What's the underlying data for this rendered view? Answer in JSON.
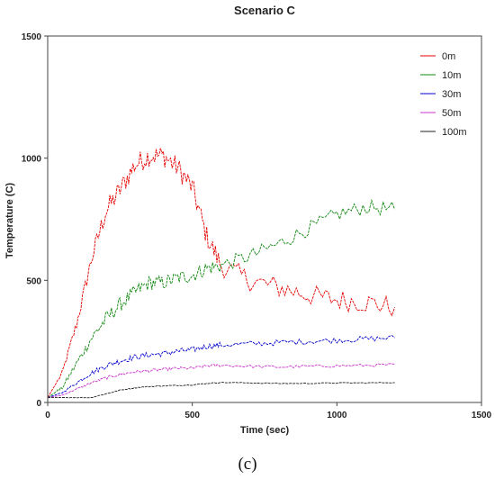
{
  "chart_data": {
    "type": "line",
    "title": "Scenario C",
    "xlabel": "Time (sec)",
    "ylabel": "Temperature (C)",
    "xlim": [
      0,
      1500
    ],
    "ylim": [
      0,
      1500
    ],
    "xticks": [
      0,
      500,
      1000,
      1500
    ],
    "yticks": [
      0,
      500,
      1000,
      1500
    ],
    "grid": false,
    "legend_position": "top-right",
    "series": [
      {
        "name": "0m",
        "color": "#e60000",
        "x": [
          0,
          50,
          100,
          150,
          200,
          250,
          300,
          350,
          400,
          450,
          500,
          550,
          600,
          700,
          800,
          900,
          1000,
          1100,
          1200
        ],
        "y": [
          20,
          120,
          320,
          580,
          780,
          870,
          970,
          1010,
          1010,
          960,
          880,
          680,
          560,
          500,
          470,
          440,
          420,
          410,
          390
        ]
      },
      {
        "name": "10m",
        "color": "#118811",
        "x": [
          0,
          50,
          100,
          150,
          200,
          250,
          300,
          350,
          400,
          450,
          500,
          550,
          600,
          700,
          800,
          900,
          1000,
          1100,
          1200
        ],
        "y": [
          20,
          60,
          160,
          260,
          340,
          400,
          450,
          490,
          490,
          510,
          520,
          550,
          560,
          600,
          650,
          710,
          770,
          800,
          790
        ]
      },
      {
        "name": "30m",
        "color": "#0000cc",
        "x": [
          0,
          50,
          100,
          150,
          200,
          250,
          300,
          350,
          400,
          450,
          500,
          550,
          600,
          700,
          800,
          900,
          1000,
          1100,
          1200
        ],
        "y": [
          20,
          40,
          80,
          120,
          150,
          170,
          185,
          195,
          200,
          210,
          215,
          230,
          235,
          240,
          245,
          250,
          255,
          260,
          265
        ]
      },
      {
        "name": "50m",
        "color": "#cc33cc",
        "x": [
          0,
          50,
          100,
          150,
          200,
          250,
          300,
          350,
          400,
          450,
          500,
          550,
          600,
          700,
          800,
          900,
          1000,
          1100,
          1200
        ],
        "y": [
          20,
          30,
          55,
          80,
          100,
          115,
          125,
          130,
          135,
          140,
          140,
          150,
          152,
          148,
          145,
          148,
          150,
          152,
          155
        ]
      },
      {
        "name": "100m",
        "color": "#222222",
        "x": [
          0,
          50,
          100,
          150,
          200,
          250,
          300,
          350,
          400,
          450,
          500,
          550,
          600,
          700,
          800,
          900,
          1000,
          1100,
          1200
        ],
        "y": [
          20,
          20,
          20,
          20,
          35,
          50,
          60,
          65,
          68,
          70,
          72,
          78,
          82,
          80,
          78,
          78,
          80,
          80,
          82
        ]
      }
    ]
  },
  "caption": "(c)"
}
